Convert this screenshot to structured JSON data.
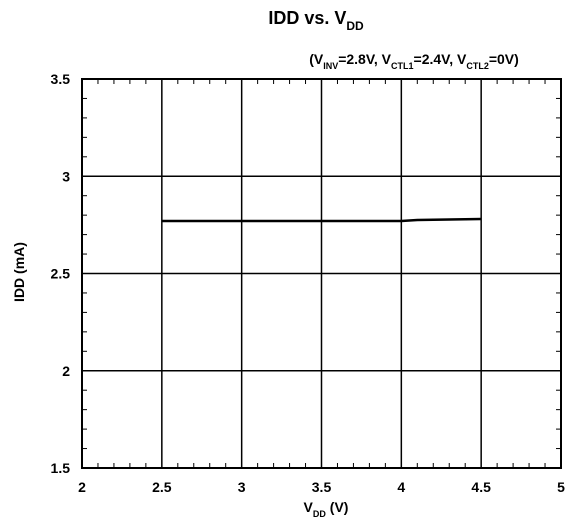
{
  "chart_data": {
    "type": "line",
    "title": {
      "main": "IDD vs. V",
      "sub": "DD"
    },
    "subtitle": [
      {
        "t": "(V"
      },
      {
        "t": "INV",
        "sub": true
      },
      {
        "t": "=2.8V, V"
      },
      {
        "t": "CTL1",
        "sub": true
      },
      {
        "t": "=2.4V, V"
      },
      {
        "t": "CTL2",
        "sub": true
      },
      {
        "t": "=0V)"
      }
    ],
    "xlabel": {
      "main": "V",
      "sub": "DD",
      "unit": " (V)"
    },
    "ylabel": "IDD (mA)",
    "xlim": [
      2,
      5
    ],
    "ylim": [
      1.5,
      3.5
    ],
    "xticks": [
      2,
      2.5,
      3,
      3.5,
      4,
      4.5,
      5
    ],
    "yticks": [
      1.5,
      2,
      2.5,
      3,
      3.5
    ],
    "xtick_labels": [
      "2",
      "2.5",
      "3",
      "3.5",
      "4",
      "4.5",
      "5"
    ],
    "ytick_labels": [
      "1.5",
      "2",
      "2.5",
      "3",
      "3.5"
    ],
    "x_minor_step": 0.1,
    "y_minor_step": 0.1,
    "grid": true,
    "series": [
      {
        "x": [
          2.5,
          3.0,
          3.5,
          4.0,
          4.1,
          4.5
        ],
        "y": [
          2.77,
          2.77,
          2.77,
          2.77,
          2.775,
          2.78
        ]
      }
    ]
  }
}
